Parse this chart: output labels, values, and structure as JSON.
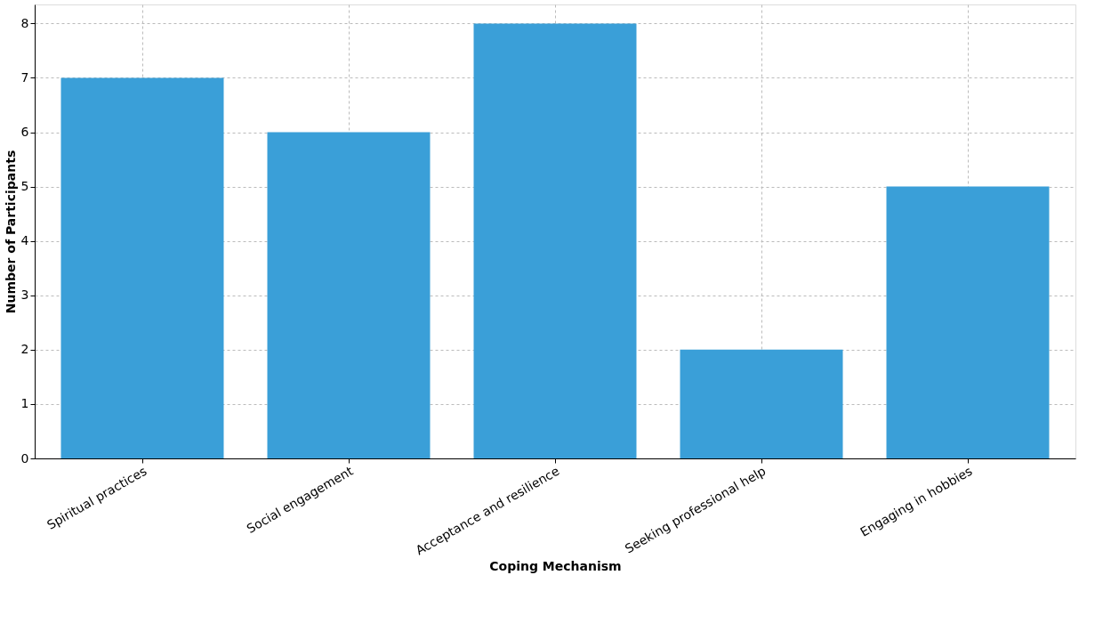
{
  "chart_data": {
    "type": "bar",
    "categories": [
      "Spiritual practices",
      "Social engagement",
      "Acceptance and resilience",
      "Seeking professional help",
      "Engaging in hobbies"
    ],
    "values": [
      7,
      6,
      8,
      2,
      5
    ],
    "color": "#3a9fd8",
    "xlabel": "Coping Mechanism",
    "ylabel": "Number of Participants",
    "ylim": [
      0,
      8.35
    ],
    "yticks": [
      0,
      1,
      2,
      3,
      4,
      5,
      6,
      7,
      8
    ],
    "grid": true
  }
}
